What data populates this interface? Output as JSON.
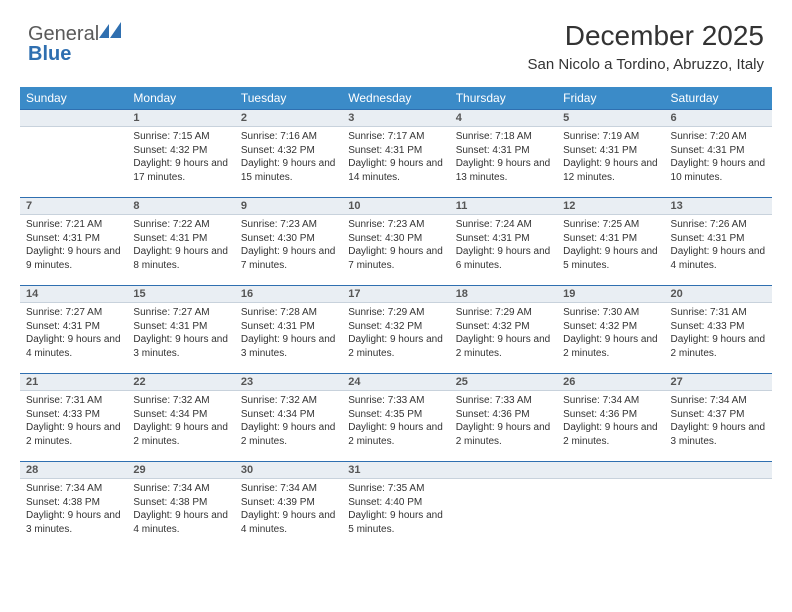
{
  "brand": {
    "part1": "General",
    "part2": "Blue"
  },
  "title": "December 2025",
  "location": "San Nicolo a Tordino, Abruzzo, Italy",
  "colors": {
    "header_bg": "#3b8bc8",
    "daynum_bg": "#e9eef3",
    "daynum_border_top": "#2f6fb0",
    "text": "#333333"
  },
  "weekdays": [
    "Sunday",
    "Monday",
    "Tuesday",
    "Wednesday",
    "Thursday",
    "Friday",
    "Saturday"
  ],
  "weeks": [
    [
      {
        "n": "",
        "sr": "",
        "ss": "",
        "dl": ""
      },
      {
        "n": "1",
        "sr": "Sunrise: 7:15 AM",
        "ss": "Sunset: 4:32 PM",
        "dl": "Daylight: 9 hours and 17 minutes."
      },
      {
        "n": "2",
        "sr": "Sunrise: 7:16 AM",
        "ss": "Sunset: 4:32 PM",
        "dl": "Daylight: 9 hours and 15 minutes."
      },
      {
        "n": "3",
        "sr": "Sunrise: 7:17 AM",
        "ss": "Sunset: 4:31 PM",
        "dl": "Daylight: 9 hours and 14 minutes."
      },
      {
        "n": "4",
        "sr": "Sunrise: 7:18 AM",
        "ss": "Sunset: 4:31 PM",
        "dl": "Daylight: 9 hours and 13 minutes."
      },
      {
        "n": "5",
        "sr": "Sunrise: 7:19 AM",
        "ss": "Sunset: 4:31 PM",
        "dl": "Daylight: 9 hours and 12 minutes."
      },
      {
        "n": "6",
        "sr": "Sunrise: 7:20 AM",
        "ss": "Sunset: 4:31 PM",
        "dl": "Daylight: 9 hours and 10 minutes."
      }
    ],
    [
      {
        "n": "7",
        "sr": "Sunrise: 7:21 AM",
        "ss": "Sunset: 4:31 PM",
        "dl": "Daylight: 9 hours and 9 minutes."
      },
      {
        "n": "8",
        "sr": "Sunrise: 7:22 AM",
        "ss": "Sunset: 4:31 PM",
        "dl": "Daylight: 9 hours and 8 minutes."
      },
      {
        "n": "9",
        "sr": "Sunrise: 7:23 AM",
        "ss": "Sunset: 4:30 PM",
        "dl": "Daylight: 9 hours and 7 minutes."
      },
      {
        "n": "10",
        "sr": "Sunrise: 7:23 AM",
        "ss": "Sunset: 4:30 PM",
        "dl": "Daylight: 9 hours and 7 minutes."
      },
      {
        "n": "11",
        "sr": "Sunrise: 7:24 AM",
        "ss": "Sunset: 4:31 PM",
        "dl": "Daylight: 9 hours and 6 minutes."
      },
      {
        "n": "12",
        "sr": "Sunrise: 7:25 AM",
        "ss": "Sunset: 4:31 PM",
        "dl": "Daylight: 9 hours and 5 minutes."
      },
      {
        "n": "13",
        "sr": "Sunrise: 7:26 AM",
        "ss": "Sunset: 4:31 PM",
        "dl": "Daylight: 9 hours and 4 minutes."
      }
    ],
    [
      {
        "n": "14",
        "sr": "Sunrise: 7:27 AM",
        "ss": "Sunset: 4:31 PM",
        "dl": "Daylight: 9 hours and 4 minutes."
      },
      {
        "n": "15",
        "sr": "Sunrise: 7:27 AM",
        "ss": "Sunset: 4:31 PM",
        "dl": "Daylight: 9 hours and 3 minutes."
      },
      {
        "n": "16",
        "sr": "Sunrise: 7:28 AM",
        "ss": "Sunset: 4:31 PM",
        "dl": "Daylight: 9 hours and 3 minutes."
      },
      {
        "n": "17",
        "sr": "Sunrise: 7:29 AM",
        "ss": "Sunset: 4:32 PM",
        "dl": "Daylight: 9 hours and 2 minutes."
      },
      {
        "n": "18",
        "sr": "Sunrise: 7:29 AM",
        "ss": "Sunset: 4:32 PM",
        "dl": "Daylight: 9 hours and 2 minutes."
      },
      {
        "n": "19",
        "sr": "Sunrise: 7:30 AM",
        "ss": "Sunset: 4:32 PM",
        "dl": "Daylight: 9 hours and 2 minutes."
      },
      {
        "n": "20",
        "sr": "Sunrise: 7:31 AM",
        "ss": "Sunset: 4:33 PM",
        "dl": "Daylight: 9 hours and 2 minutes."
      }
    ],
    [
      {
        "n": "21",
        "sr": "Sunrise: 7:31 AM",
        "ss": "Sunset: 4:33 PM",
        "dl": "Daylight: 9 hours and 2 minutes."
      },
      {
        "n": "22",
        "sr": "Sunrise: 7:32 AM",
        "ss": "Sunset: 4:34 PM",
        "dl": "Daylight: 9 hours and 2 minutes."
      },
      {
        "n": "23",
        "sr": "Sunrise: 7:32 AM",
        "ss": "Sunset: 4:34 PM",
        "dl": "Daylight: 9 hours and 2 minutes."
      },
      {
        "n": "24",
        "sr": "Sunrise: 7:33 AM",
        "ss": "Sunset: 4:35 PM",
        "dl": "Daylight: 9 hours and 2 minutes."
      },
      {
        "n": "25",
        "sr": "Sunrise: 7:33 AM",
        "ss": "Sunset: 4:36 PM",
        "dl": "Daylight: 9 hours and 2 minutes."
      },
      {
        "n": "26",
        "sr": "Sunrise: 7:34 AM",
        "ss": "Sunset: 4:36 PM",
        "dl": "Daylight: 9 hours and 2 minutes."
      },
      {
        "n": "27",
        "sr": "Sunrise: 7:34 AM",
        "ss": "Sunset: 4:37 PM",
        "dl": "Daylight: 9 hours and 3 minutes."
      }
    ],
    [
      {
        "n": "28",
        "sr": "Sunrise: 7:34 AM",
        "ss": "Sunset: 4:38 PM",
        "dl": "Daylight: 9 hours and 3 minutes."
      },
      {
        "n": "29",
        "sr": "Sunrise: 7:34 AM",
        "ss": "Sunset: 4:38 PM",
        "dl": "Daylight: 9 hours and 4 minutes."
      },
      {
        "n": "30",
        "sr": "Sunrise: 7:34 AM",
        "ss": "Sunset: 4:39 PM",
        "dl": "Daylight: 9 hours and 4 minutes."
      },
      {
        "n": "31",
        "sr": "Sunrise: 7:35 AM",
        "ss": "Sunset: 4:40 PM",
        "dl": "Daylight: 9 hours and 5 minutes."
      },
      {
        "n": "",
        "sr": "",
        "ss": "",
        "dl": ""
      },
      {
        "n": "",
        "sr": "",
        "ss": "",
        "dl": ""
      },
      {
        "n": "",
        "sr": "",
        "ss": "",
        "dl": ""
      }
    ]
  ]
}
